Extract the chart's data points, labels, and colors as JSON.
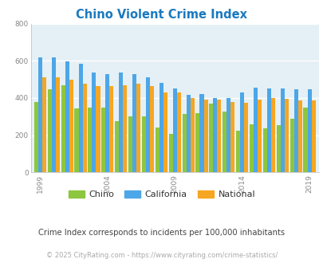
{
  "title": "Chino Violent Crime Index",
  "years": [
    1999,
    2000,
    2001,
    2002,
    2003,
    2004,
    2005,
    2006,
    2007,
    2008,
    2009,
    2010,
    2011,
    2012,
    2013,
    2014,
    2015,
    2016,
    2017,
    2018,
    2019
  ],
  "chino": [
    380,
    445,
    470,
    345,
    350,
    350,
    275,
    300,
    300,
    240,
    205,
    315,
    320,
    370,
    325,
    225,
    260,
    238,
    255,
    290,
    350
  ],
  "california": [
    620,
    620,
    595,
    585,
    535,
    530,
    535,
    530,
    510,
    480,
    450,
    415,
    420,
    400,
    400,
    430,
    455,
    450,
    450,
    445,
    445
  ],
  "national": [
    510,
    510,
    500,
    475,
    465,
    465,
    470,
    475,
    465,
    430,
    430,
    400,
    390,
    390,
    380,
    375,
    390,
    400,
    395,
    385,
    385
  ],
  "chino_color": "#8dc63f",
  "california_color": "#4da6e8",
  "national_color": "#f5a623",
  "bg_color": "#e4f0f5",
  "ylim": [
    0,
    800
  ],
  "yticks": [
    0,
    200,
    400,
    600,
    800
  ],
  "xlabel_ticks": [
    1999,
    2004,
    2009,
    2014,
    2019
  ],
  "title_color": "#1a7abf",
  "subtitle": "Crime Index corresponds to incidents per 100,000 inhabitants",
  "footer": "© 2025 CityRating.com - https://www.cityrating.com/crime-statistics/",
  "legend_labels": [
    "Chino",
    "California",
    "National"
  ],
  "subtitle_color": "#444444",
  "footer_color": "#aaaaaa"
}
